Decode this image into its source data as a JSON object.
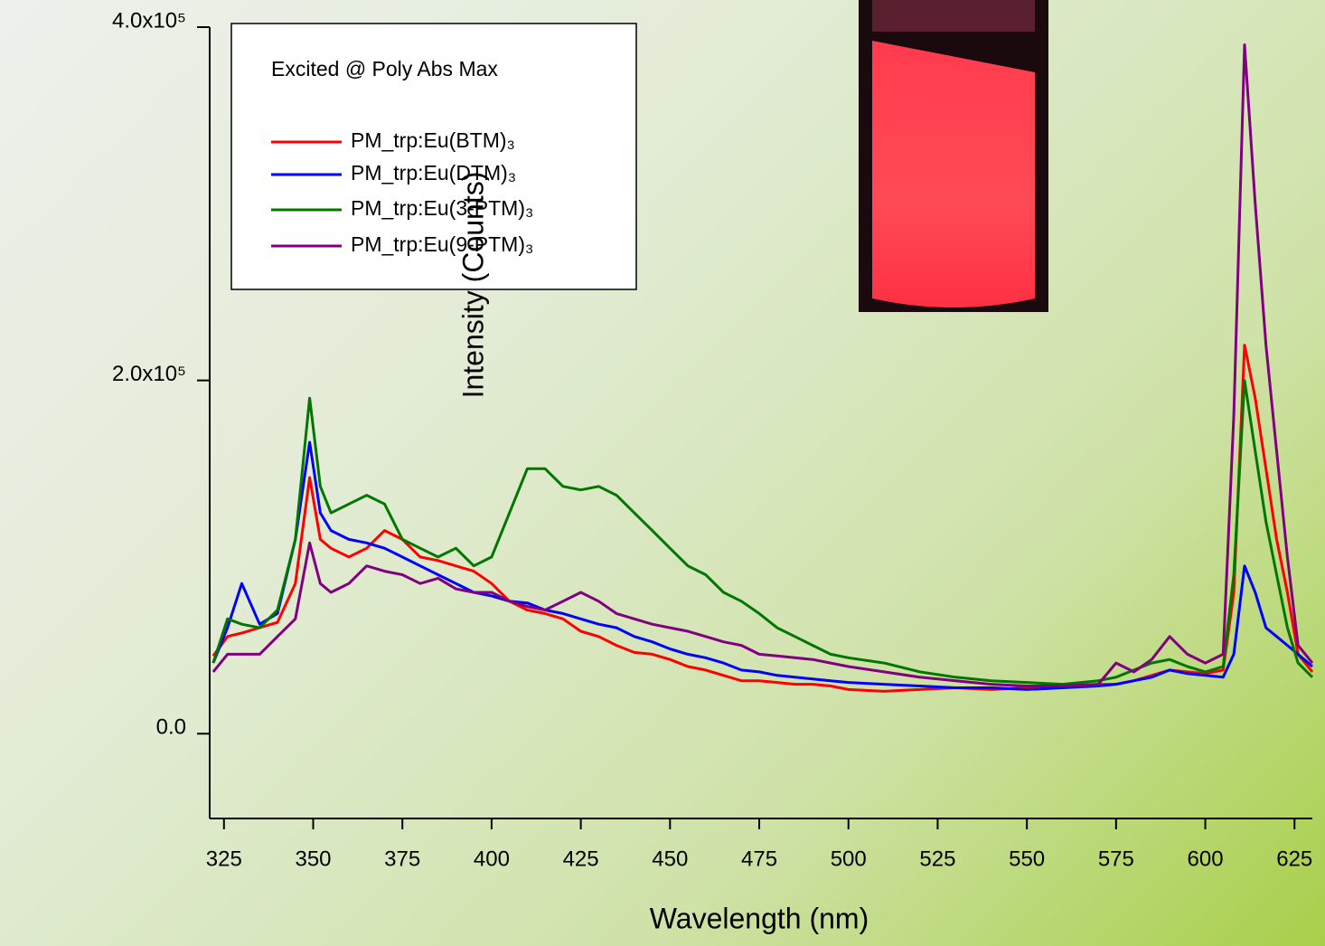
{
  "chart_data": {
    "type": "line",
    "x_label": "Wavelength (nm)",
    "y_label": "Intensity (Counts)",
    "legend_title": "Excited @ Poly Abs Max",
    "xlim": [
      321,
      630
    ],
    "ylim": [
      -48000,
      400000
    ],
    "xticks": [
      325,
      350,
      375,
      400,
      425,
      450,
      475,
      500,
      525,
      550,
      575,
      600,
      625
    ],
    "yticks": [
      {
        "value": 0,
        "label": "0.0"
      },
      {
        "value": 200000,
        "label": "2.0x10⁵"
      },
      {
        "value": 400000,
        "label": "4.0x10⁵"
      }
    ],
    "x": [
      322,
      326,
      330,
      335,
      340,
      345,
      349,
      352,
      355,
      360,
      365,
      370,
      375,
      380,
      385,
      390,
      395,
      400,
      405,
      410,
      415,
      420,
      425,
      430,
      435,
      440,
      445,
      450,
      455,
      460,
      465,
      470,
      475,
      480,
      485,
      490,
      495,
      500,
      510,
      520,
      530,
      540,
      550,
      560,
      570,
      575,
      580,
      585,
      590,
      595,
      600,
      605,
      608,
      611,
      614,
      617,
      620,
      623,
      626,
      630
    ],
    "series": [
      {
        "name": "PM_trp:Eu(BTM)₃",
        "color": "#ff0000",
        "values": [
          44000,
          55000,
          57000,
          60000,
          63000,
          85000,
          145000,
          110000,
          105000,
          100000,
          105000,
          115000,
          110000,
          100000,
          98000,
          95000,
          92000,
          85000,
          75000,
          70000,
          68000,
          65000,
          58000,
          55000,
          50000,
          46000,
          45000,
          42000,
          38000,
          36000,
          33000,
          30000,
          30000,
          29000,
          28000,
          28000,
          27000,
          25000,
          24000,
          25000,
          26000,
          25000,
          26000,
          27000,
          28000,
          28000,
          30000,
          33000,
          36000,
          35000,
          34000,
          36000,
          80000,
          220000,
          190000,
          150000,
          110000,
          80000,
          45000,
          35000
        ]
      },
      {
        "name": "PM_trp:Eu(DTM)₃",
        "color": "#0000ff",
        "values": [
          40000,
          60000,
          85000,
          62000,
          68000,
          110000,
          165000,
          125000,
          115000,
          110000,
          108000,
          105000,
          100000,
          95000,
          90000,
          85000,
          80000,
          78000,
          75000,
          74000,
          70000,
          68000,
          65000,
          62000,
          60000,
          55000,
          52000,
          48000,
          45000,
          43000,
          40000,
          36000,
          35000,
          33000,
          32000,
          31000,
          30000,
          29000,
          28000,
          27000,
          26000,
          26000,
          25000,
          26000,
          27000,
          28000,
          30000,
          32000,
          36000,
          34000,
          33000,
          32000,
          45000,
          95000,
          80000,
          60000,
          55000,
          50000,
          45000,
          38000
        ]
      },
      {
        "name": "PM_trp:Eu(3-PTM)₃",
        "color": "#007700",
        "values": [
          40000,
          65000,
          62000,
          60000,
          70000,
          110000,
          190000,
          140000,
          125000,
          130000,
          135000,
          130000,
          110000,
          105000,
          100000,
          105000,
          95000,
          100000,
          125000,
          150000,
          150000,
          140000,
          138000,
          140000,
          135000,
          125000,
          115000,
          105000,
          95000,
          90000,
          80000,
          75000,
          68000,
          60000,
          55000,
          50000,
          45000,
          43000,
          40000,
          35000,
          32000,
          30000,
          29000,
          28000,
          30000,
          32000,
          36000,
          40000,
          42000,
          38000,
          35000,
          38000,
          90000,
          200000,
          160000,
          120000,
          90000,
          60000,
          40000,
          32000
        ]
      },
      {
        "name": "PM_trp:Eu(9-PTM)₃",
        "color": "#800080",
        "values": [
          35000,
          45000,
          45000,
          45000,
          55000,
          65000,
          108000,
          85000,
          80000,
          85000,
          95000,
          92000,
          90000,
          85000,
          88000,
          82000,
          80000,
          80000,
          75000,
          72000,
          70000,
          75000,
          80000,
          75000,
          68000,
          65000,
          62000,
          60000,
          58000,
          55000,
          52000,
          50000,
          45000,
          44000,
          43000,
          42000,
          40000,
          38000,
          35000,
          32000,
          30000,
          28000,
          27000,
          27000,
          28000,
          40000,
          35000,
          42000,
          55000,
          45000,
          40000,
          45000,
          180000,
          390000,
          300000,
          220000,
          160000,
          100000,
          50000,
          40000
        ]
      }
    ]
  }
}
